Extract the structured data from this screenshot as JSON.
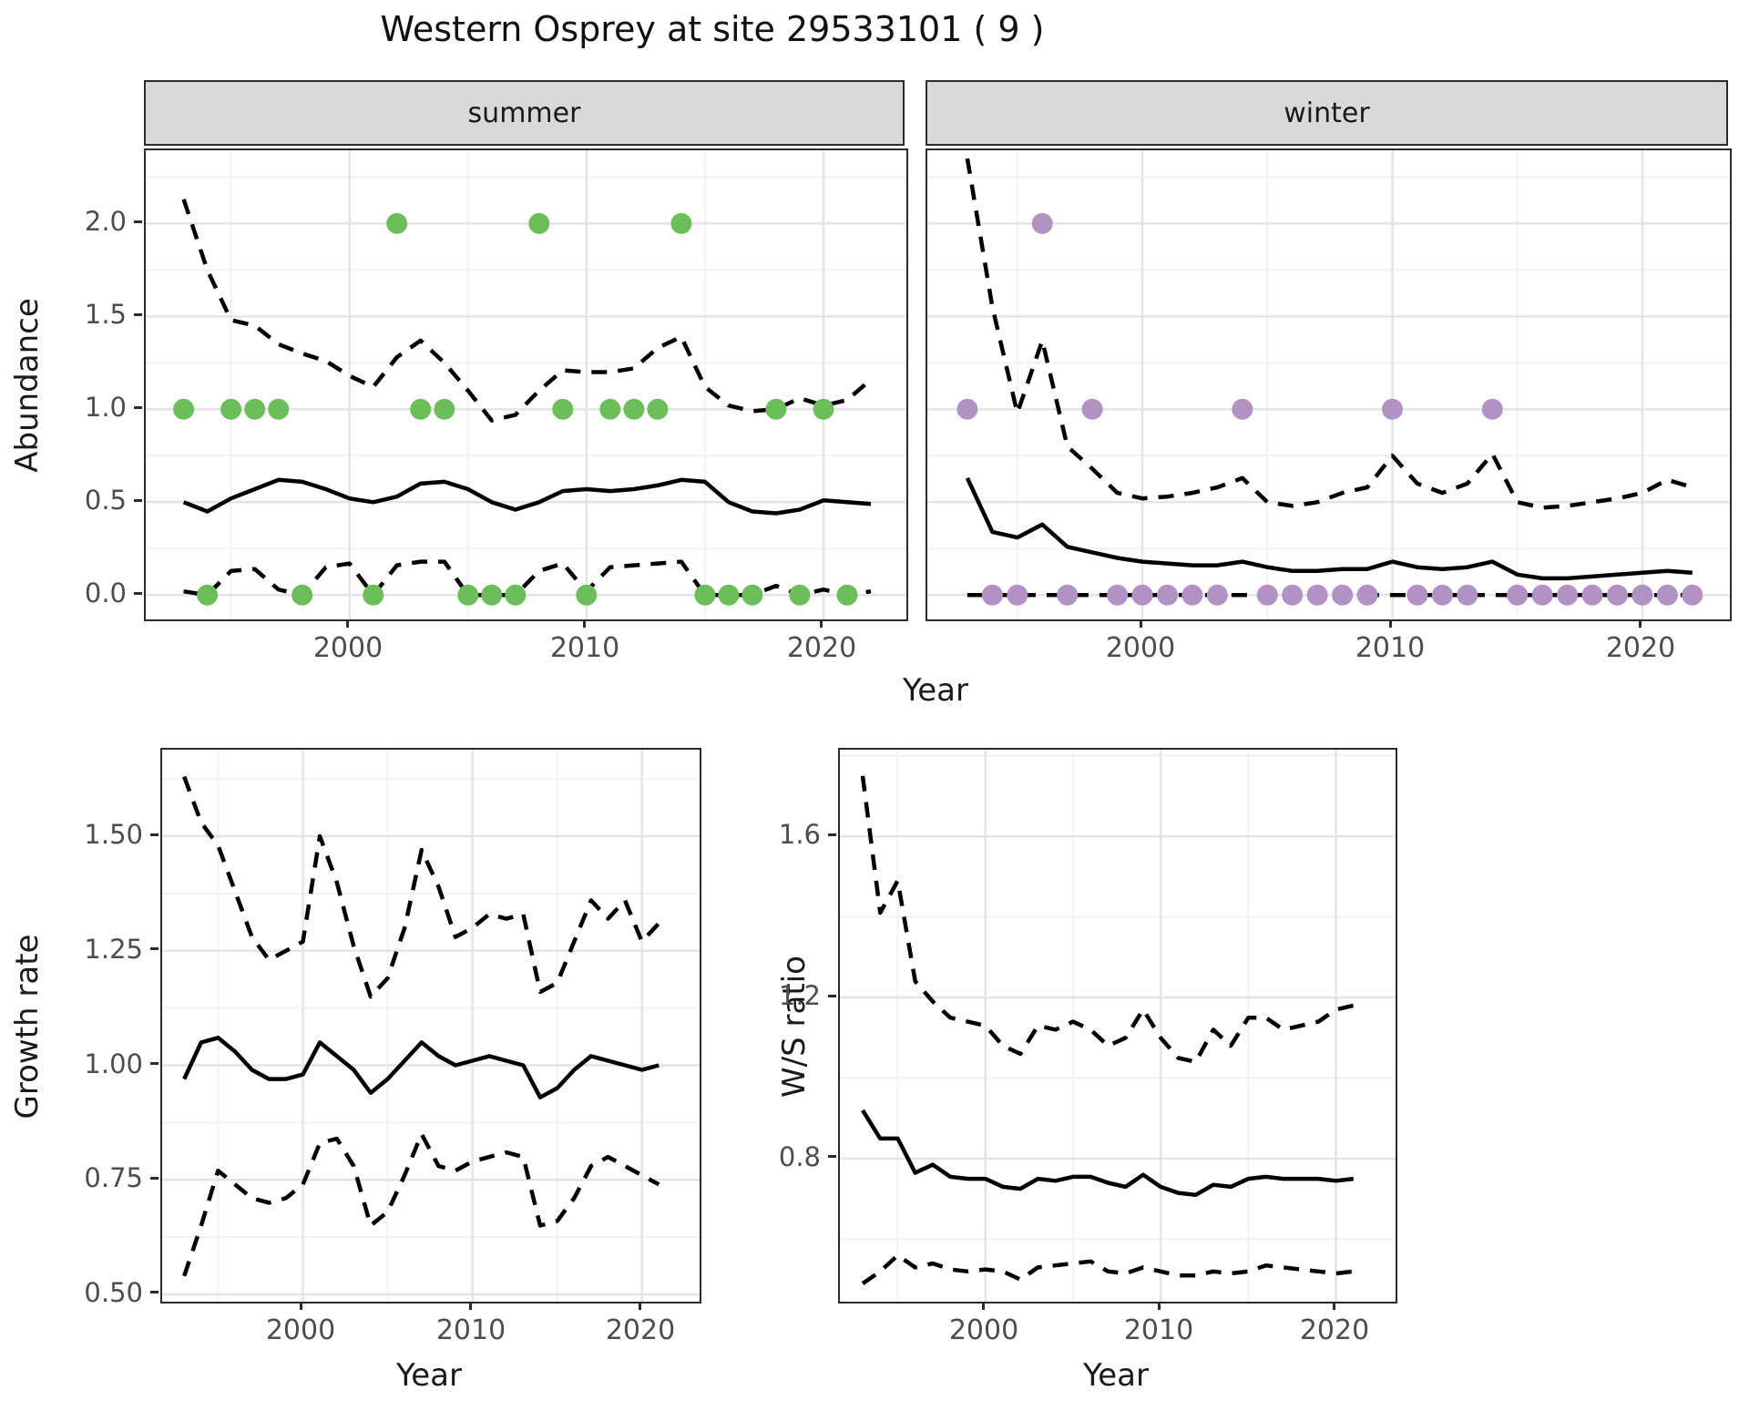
{
  "title": "Western Osprey at site 29533101 ( 9 )",
  "facets": [
    "summer",
    "winter"
  ],
  "axis_titles": {
    "abundance": "Abundance",
    "year_top": "Year",
    "growth": "Growth rate",
    "year_growth": "Year",
    "ws": "W/S ratio",
    "year_ws": "Year"
  },
  "colors": {
    "summer_point": "#6bbe5a",
    "winter_point": "#b292c4",
    "line": "#000000",
    "strip_bg": "#d9d9d9",
    "tick_text": "#4d4d4d"
  },
  "chart_data": [
    {
      "id": "summer",
      "type": "line",
      "facet_label": "summer",
      "xlabel": "Year",
      "ylabel": "Abundance",
      "xlim": [
        1991.4,
        2023.5
      ],
      "ylim": [
        -0.131,
        2.394
      ],
      "x_ticks": [
        2000,
        2010,
        2020
      ],
      "x_tick_labels": [
        "2000",
        "2010",
        "2020"
      ],
      "x_minor": [
        1995,
        2005,
        2015
      ],
      "y_ticks": [
        0.0,
        0.5,
        1.0,
        1.5,
        2.0
      ],
      "y_tick_labels": [
        "0.0",
        "0.5",
        "1.0",
        "1.5",
        "2.0"
      ],
      "y_minor": [
        0.25,
        0.75,
        1.25,
        1.75,
        2.25
      ],
      "show_y_labels": true,
      "grid": true,
      "legend": "none",
      "years": [
        1993,
        1994,
        1995,
        1996,
        1997,
        1998,
        1999,
        2000,
        2001,
        2002,
        2003,
        2004,
        2005,
        2006,
        2007,
        2008,
        2009,
        2010,
        2011,
        2012,
        2013,
        2014,
        2015,
        2016,
        2017,
        2018,
        2019,
        2020,
        2021,
        2022
      ],
      "series": [
        {
          "name": "upper_97.5_CI",
          "style": "dashed",
          "values": [
            2.13,
            1.75,
            1.48,
            1.45,
            1.35,
            1.3,
            1.26,
            1.18,
            1.12,
            1.28,
            1.37,
            1.25,
            1.1,
            0.94,
            0.97,
            1.1,
            1.21,
            1.2,
            1.2,
            1.22,
            1.33,
            1.39,
            1.12,
            1.02,
            0.99,
            1.0,
            1.06,
            1.02,
            1.05,
            1.16
          ]
        },
        {
          "name": "median",
          "style": "solid",
          "values": [
            0.5,
            0.45,
            0.52,
            0.57,
            0.62,
            0.61,
            0.57,
            0.52,
            0.5,
            0.53,
            0.6,
            0.61,
            0.57,
            0.5,
            0.46,
            0.5,
            0.56,
            0.57,
            0.56,
            0.57,
            0.59,
            0.62,
            0.61,
            0.5,
            0.45,
            0.44,
            0.46,
            0.51,
            0.5,
            0.49
          ]
        },
        {
          "name": "lower_2.5_CI",
          "style": "dashed",
          "values": [
            0.02,
            0.0,
            0.13,
            0.14,
            0.03,
            0.0,
            0.15,
            0.17,
            0.0,
            0.16,
            0.18,
            0.18,
            0.0,
            0.0,
            0.0,
            0.13,
            0.17,
            0.02,
            0.15,
            0.16,
            0.17,
            0.18,
            0.0,
            0.0,
            0.0,
            0.05,
            0.0,
            0.03,
            0.0,
            0.02
          ]
        }
      ],
      "points": {
        "name": "observed_counts",
        "color": "#6bbe5a",
        "radius": 11.5,
        "years": [
          1993,
          1994,
          1995,
          1996,
          1997,
          1998,
          2001,
          2002,
          2003,
          2004,
          2005,
          2006,
          2007,
          2008,
          2009,
          2010,
          2011,
          2012,
          2013,
          2014,
          2015,
          2016,
          2017,
          2018,
          2019,
          2020,
          2021
        ],
        "values": [
          1,
          0,
          1,
          1,
          1,
          0,
          0,
          2,
          1,
          1,
          0,
          0,
          0,
          2,
          1,
          0,
          1,
          1,
          1,
          2,
          0,
          0,
          0,
          1,
          0,
          1,
          0
        ]
      }
    },
    {
      "id": "winter",
      "type": "line",
      "facet_label": "winter",
      "xlabel": "Year",
      "ylabel": "Abundance",
      "xlim": [
        1991.4,
        2023.5
      ],
      "ylim": [
        -0.131,
        2.394
      ],
      "x_ticks": [
        2000,
        2010,
        2020
      ],
      "x_tick_labels": [
        "2000",
        "2010",
        "2020"
      ],
      "x_minor": [
        1995,
        2005,
        2015
      ],
      "y_ticks": [
        0.0,
        0.5,
        1.0,
        1.5,
        2.0
      ],
      "y_tick_labels": [
        "0.0",
        "0.5",
        "1.0",
        "1.5",
        "2.0"
      ],
      "y_minor": [
        0.25,
        0.75,
        1.25,
        1.75,
        2.25
      ],
      "show_y_labels": false,
      "grid": true,
      "legend": "none",
      "years": [
        1993,
        1994,
        1995,
        1996,
        1997,
        1998,
        1999,
        2000,
        2001,
        2002,
        2003,
        2004,
        2005,
        2006,
        2007,
        2008,
        2009,
        2010,
        2011,
        2012,
        2013,
        2014,
        2015,
        2016,
        2017,
        2018,
        2019,
        2020,
        2021,
        2022
      ],
      "series": [
        {
          "name": "upper_97.5_CI",
          "style": "dashed",
          "values": [
            2.35,
            1.55,
            0.98,
            1.37,
            0.8,
            0.68,
            0.55,
            0.52,
            0.53,
            0.55,
            0.58,
            0.63,
            0.5,
            0.48,
            0.5,
            0.55,
            0.58,
            0.75,
            0.6,
            0.55,
            0.6,
            0.76,
            0.5,
            0.47,
            0.48,
            0.5,
            0.52,
            0.55,
            0.62,
            0.58
          ]
        },
        {
          "name": "median",
          "style": "solid",
          "values": [
            0.63,
            0.34,
            0.31,
            0.38,
            0.26,
            0.23,
            0.2,
            0.18,
            0.17,
            0.16,
            0.16,
            0.18,
            0.15,
            0.13,
            0.13,
            0.14,
            0.14,
            0.18,
            0.15,
            0.14,
            0.15,
            0.18,
            0.11,
            0.09,
            0.09,
            0.1,
            0.11,
            0.12,
            0.13,
            0.12
          ]
        },
        {
          "name": "lower_2.5_CI",
          "style": "dashed",
          "values": [
            0,
            0,
            0,
            0,
            0,
            0,
            0,
            0,
            0,
            0,
            0,
            0,
            0,
            0,
            0,
            0,
            0,
            0,
            0,
            0,
            0,
            0,
            0,
            0,
            0,
            0,
            0,
            0,
            0,
            0
          ]
        }
      ],
      "points": {
        "name": "observed_counts",
        "color": "#b292c4",
        "radius": 11.5,
        "years": [
          1993,
          1994,
          1995,
          1996,
          1997,
          1998,
          1999,
          2000,
          2001,
          2002,
          2003,
          2004,
          2005,
          2006,
          2007,
          2008,
          2009,
          2010,
          2011,
          2012,
          2013,
          2014,
          2015,
          2016,
          2017,
          2018,
          2019,
          2020,
          2021,
          2022
        ],
        "values": [
          1,
          0,
          0,
          2,
          0,
          1,
          0,
          0,
          0,
          0,
          0,
          1,
          0,
          0,
          0,
          0,
          0,
          1,
          0,
          0,
          0,
          1,
          0,
          0,
          0,
          0,
          0,
          0,
          0,
          0
        ]
      }
    },
    {
      "id": "growth",
      "type": "line",
      "facet_label": "",
      "xlabel": "Year",
      "ylabel": "Growth rate",
      "xlim": [
        1991.7,
        2023.4
      ],
      "ylim": [
        0.484,
        1.689
      ],
      "x_ticks": [
        2000,
        2010,
        2020
      ],
      "x_tick_labels": [
        "2000",
        "2010",
        "2020"
      ],
      "x_minor": [
        1995,
        2005,
        2015
      ],
      "y_ticks": [
        0.5,
        0.75,
        1.0,
        1.25,
        1.5
      ],
      "y_tick_labels": [
        "0.50",
        "0.75",
        "1.00",
        "1.25",
        "1.50"
      ],
      "y_minor": [
        0.625,
        0.875,
        1.125,
        1.375,
        1.625
      ],
      "show_y_labels": true,
      "grid": true,
      "legend": "none",
      "years": [
        1993,
        1994,
        1995,
        1996,
        1997,
        1998,
        1999,
        2000,
        2001,
        2002,
        2003,
        2004,
        2005,
        2006,
        2007,
        2008,
        2009,
        2010,
        2011,
        2012,
        2013,
        2014,
        2015,
        2016,
        2017,
        2018,
        2019,
        2020,
        2021
      ],
      "series": [
        {
          "name": "upper_97.5_CI",
          "style": "dashed",
          "values": [
            1.63,
            1.53,
            1.48,
            1.38,
            1.28,
            1.23,
            1.25,
            1.27,
            1.5,
            1.4,
            1.26,
            1.15,
            1.19,
            1.3,
            1.47,
            1.39,
            1.28,
            1.3,
            1.33,
            1.32,
            1.33,
            1.16,
            1.18,
            1.27,
            1.36,
            1.32,
            1.36,
            1.27,
            1.31
          ]
        },
        {
          "name": "median",
          "style": "solid",
          "values": [
            0.97,
            1.05,
            1.06,
            1.03,
            0.99,
            0.97,
            0.97,
            0.98,
            1.05,
            1.02,
            0.99,
            0.94,
            0.97,
            1.01,
            1.05,
            1.02,
            1.0,
            1.01,
            1.02,
            1.01,
            1.0,
            0.93,
            0.95,
            0.99,
            1.02,
            1.01,
            1.0,
            0.99,
            1.0
          ]
        },
        {
          "name": "lower_2.5_CI",
          "style": "dashed",
          "values": [
            0.54,
            0.65,
            0.77,
            0.74,
            0.71,
            0.7,
            0.71,
            0.74,
            0.83,
            0.84,
            0.78,
            0.65,
            0.68,
            0.76,
            0.85,
            0.78,
            0.77,
            0.79,
            0.8,
            0.81,
            0.8,
            0.65,
            0.66,
            0.71,
            0.78,
            0.8,
            0.78,
            0.76,
            0.74
          ]
        }
      ],
      "points": null
    },
    {
      "id": "ws",
      "type": "line",
      "facet_label": "",
      "xlabel": "Year",
      "ylabel": "W/S ratio",
      "xlim": [
        1991.7,
        2023.4
      ],
      "ylim": [
        0.445,
        1.815
      ],
      "x_ticks": [
        2000,
        2010,
        2020
      ],
      "x_tick_labels": [
        "2000",
        "2010",
        "2020"
      ],
      "x_minor": [
        1995,
        2005,
        2015
      ],
      "y_ticks": [
        0.8,
        1.2,
        1.6
      ],
      "y_tick_labels": [
        "0.8",
        "1.2",
        "1.6"
      ],
      "y_minor": [
        0.6,
        1.0,
        1.4,
        1.8
      ],
      "show_y_labels": true,
      "grid": true,
      "legend": "none",
      "years": [
        1993,
        1994,
        1995,
        1996,
        1997,
        1998,
        1999,
        2000,
        2001,
        2002,
        2003,
        2004,
        2005,
        2006,
        2007,
        2008,
        2009,
        2010,
        2011,
        2012,
        2013,
        2014,
        2015,
        2016,
        2017,
        2018,
        2019,
        2020,
        2021
      ],
      "series": [
        {
          "name": "upper_97.5_CI",
          "style": "dashed",
          "values": [
            1.75,
            1.41,
            1.49,
            1.24,
            1.19,
            1.15,
            1.14,
            1.13,
            1.08,
            1.06,
            1.13,
            1.12,
            1.14,
            1.12,
            1.08,
            1.1,
            1.17,
            1.1,
            1.05,
            1.04,
            1.12,
            1.08,
            1.15,
            1.15,
            1.12,
            1.13,
            1.14,
            1.17,
            1.18
          ]
        },
        {
          "name": "median",
          "style": "solid",
          "values": [
            0.92,
            0.85,
            0.85,
            0.765,
            0.785,
            0.755,
            0.75,
            0.75,
            0.73,
            0.725,
            0.75,
            0.745,
            0.755,
            0.755,
            0.74,
            0.73,
            0.76,
            0.73,
            0.715,
            0.71,
            0.735,
            0.73,
            0.75,
            0.755,
            0.75,
            0.75,
            0.75,
            0.745,
            0.75
          ]
        },
        {
          "name": "lower_2.5_CI",
          "style": "dashed",
          "values": [
            0.49,
            0.52,
            0.56,
            0.53,
            0.54,
            0.525,
            0.52,
            0.525,
            0.52,
            0.5,
            0.53,
            0.535,
            0.54,
            0.545,
            0.52,
            0.515,
            0.53,
            0.52,
            0.51,
            0.51,
            0.52,
            0.515,
            0.52,
            0.535,
            0.53,
            0.525,
            0.52,
            0.515,
            0.52
          ]
        }
      ],
      "points": null
    }
  ]
}
